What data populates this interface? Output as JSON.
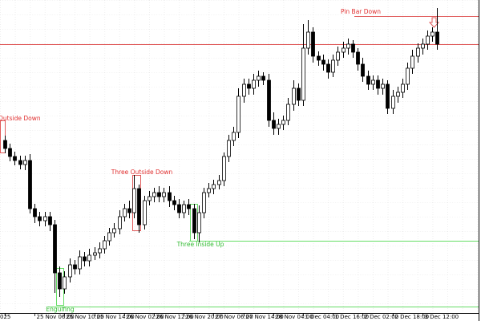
{
  "chart_data": {
    "type": "candlestick",
    "categories": [
      "025",
      null,
      null,
      null,
      null,
      null,
      "25 Nov 06:00",
      null,
      null,
      null,
      null,
      null,
      "25 Nov 10:00",
      null,
      null,
      null,
      null,
      null,
      "25 Nov 14:00",
      null,
      null,
      null,
      null,
      null,
      "26 Nov 02:00",
      null,
      null,
      null,
      null,
      null,
      "26 Nov 12:00",
      null,
      null,
      null,
      null,
      null,
      "26 Nov 20:00",
      null,
      null,
      null,
      null,
      null,
      "27 Nov 06:00",
      null,
      null,
      null,
      null,
      null,
      "27 Nov 14:00",
      null,
      null,
      null,
      null,
      null,
      "28 Nov 04:00",
      null,
      null,
      null,
      null,
      null,
      "1 Dec 04:00",
      null,
      null,
      null,
      null,
      null,
      "1 Dec 16:00",
      null,
      null,
      null,
      null,
      null,
      "2 Dec 02:00",
      null,
      null,
      null,
      null,
      null,
      "2 Dec 18:00",
      null,
      null,
      null,
      null,
      null,
      "3 Dec 12:00",
      null,
      null,
      null
    ],
    "open": [
      215,
      205,
      195,
      190,
      185,
      190,
      130,
      120,
      115,
      120,
      110,
      50,
      30,
      45,
      60,
      55,
      70,
      65,
      72,
      75,
      80,
      90,
      100,
      105,
      120,
      130,
      125,
      155,
      110,
      140,
      145,
      150,
      145,
      150,
      140,
      135,
      125,
      135,
      130,
      100,
      125,
      150,
      155,
      160,
      165,
      195,
      215,
      225,
      270,
      285,
      280,
      290,
      295,
      290,
      240,
      230,
      235,
      240,
      260,
      280,
      265,
      330,
      350,
      320,
      315,
      310,
      300,
      315,
      325,
      330,
      335,
      325,
      310,
      295,
      285,
      290,
      280,
      285,
      255,
      270,
      275,
      285,
      305,
      320,
      330,
      335,
      345,
      350
    ],
    "high": [
      221,
      211,
      201,
      196,
      196,
      198,
      136,
      126,
      126,
      126,
      116,
      58,
      52,
      68,
      66,
      78,
      76,
      80,
      82,
      88,
      96,
      106,
      112,
      128,
      136,
      140,
      172,
      160,
      146,
      152,
      156,
      158,
      156,
      158,
      146,
      142,
      140,
      142,
      136,
      134,
      156,
      162,
      166,
      172,
      200,
      222,
      232,
      280,
      292,
      292,
      298,
      302,
      300,
      298,
      250,
      242,
      246,
      268,
      290,
      286,
      360,
      365,
      356,
      326,
      322,
      316,
      322,
      332,
      338,
      342,
      340,
      330,
      318,
      302,
      296,
      296,
      292,
      290,
      278,
      282,
      292,
      312,
      328,
      336,
      342,
      352,
      356,
      380
    ],
    "low": [
      199,
      189,
      184,
      179,
      178,
      124,
      112,
      108,
      108,
      102,
      25,
      20,
      24,
      38,
      48,
      48,
      58,
      58,
      66,
      68,
      74,
      84,
      94,
      98,
      114,
      118,
      118,
      100,
      104,
      134,
      138,
      138,
      138,
      132,
      128,
      118,
      118,
      122,
      92,
      88,
      118,
      144,
      148,
      154,
      158,
      188,
      208,
      218,
      262,
      272,
      272,
      282,
      284,
      232,
      222,
      222,
      228,
      234,
      252,
      258,
      258,
      322,
      312,
      308,
      302,
      292,
      294,
      308,
      318,
      322,
      318,
      302,
      288,
      278,
      278,
      272,
      272,
      248,
      248,
      262,
      268,
      278,
      298,
      312,
      322,
      328,
      338,
      328
    ],
    "close": [
      205,
      195,
      190,
      185,
      190,
      130,
      120,
      115,
      120,
      110,
      50,
      30,
      45,
      60,
      55,
      70,
      65,
      72,
      75,
      80,
      90,
      100,
      105,
      120,
      130,
      125,
      155,
      110,
      140,
      145,
      150,
      145,
      150,
      140,
      135,
      125,
      135,
      130,
      100,
      125,
      150,
      155,
      160,
      165,
      195,
      215,
      225,
      270,
      285,
      280,
      290,
      295,
      290,
      240,
      230,
      235,
      240,
      260,
      280,
      265,
      330,
      350,
      320,
      315,
      310,
      300,
      315,
      325,
      330,
      335,
      325,
      310,
      295,
      285,
      290,
      280,
      285,
      255,
      270,
      275,
      285,
      305,
      320,
      330,
      335,
      345,
      350,
      335
    ],
    "ylim": [
      0,
      390
    ],
    "up_color": "#ffffff",
    "down_color": "#000000",
    "wick_color": "#000000",
    "levels": [
      {
        "value": 370,
        "color": "#e05a5a"
      },
      {
        "value": 335,
        "color": "#e05a5a"
      },
      {
        "value": 90,
        "color": "#66dd66"
      },
      {
        "value": 8,
        "color": "#66dd66"
      }
    ],
    "annotations": [
      {
        "text": "Outside Down",
        "color": "#e03030"
      },
      {
        "text": "Three Outside Down",
        "color": "#e03030"
      },
      {
        "text": "Three Inside Up",
        "color": "#33bb33"
      },
      {
        "text": "Engulfing",
        "color": "#33bb33"
      },
      {
        "text": "Pin Bar Down",
        "color": "#e03030"
      }
    ],
    "grid": true
  }
}
